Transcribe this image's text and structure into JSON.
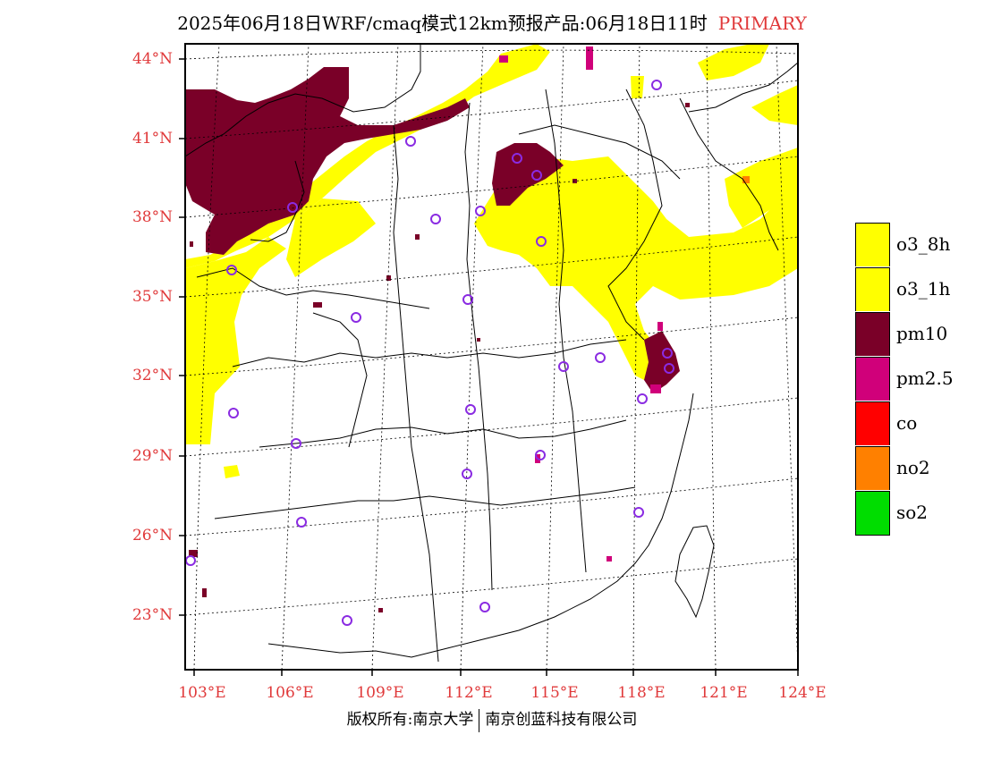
{
  "title": {
    "text": "2025年06月18日WRF/cmaq模式12km预报产品:06月18日11时",
    "tag": "PRIMARY"
  },
  "map": {
    "lat_labels": [
      "44°N",
      "41°N",
      "38°N",
      "35°N",
      "32°N",
      "29°N",
      "26°N",
      "23°N"
    ],
    "lon_labels": [
      "103°E",
      "106°E",
      "109°E",
      "112°E",
      "115°E",
      "118°E",
      "121°E",
      "124°E"
    ]
  },
  "legend": {
    "items": [
      {
        "label": "o3_8h",
        "color": "#ffff00"
      },
      {
        "label": "o3_1h",
        "color": "#ffff00"
      },
      {
        "label": "pm10",
        "color": "#7a0028"
      },
      {
        "label": "pm2.5",
        "color": "#d0007a"
      },
      {
        "label": "co",
        "color": "#ff0000"
      },
      {
        "label": "no2",
        "color": "#ff8000"
      },
      {
        "label": "so2",
        "color": "#00dd00"
      }
    ]
  },
  "footer": {
    "left": "版权所有:南京大学",
    "right": "南京创蓝科技有限公司"
  },
  "colors": {
    "station_marker": "#8a2be2",
    "axis_text": "#e0393a"
  }
}
